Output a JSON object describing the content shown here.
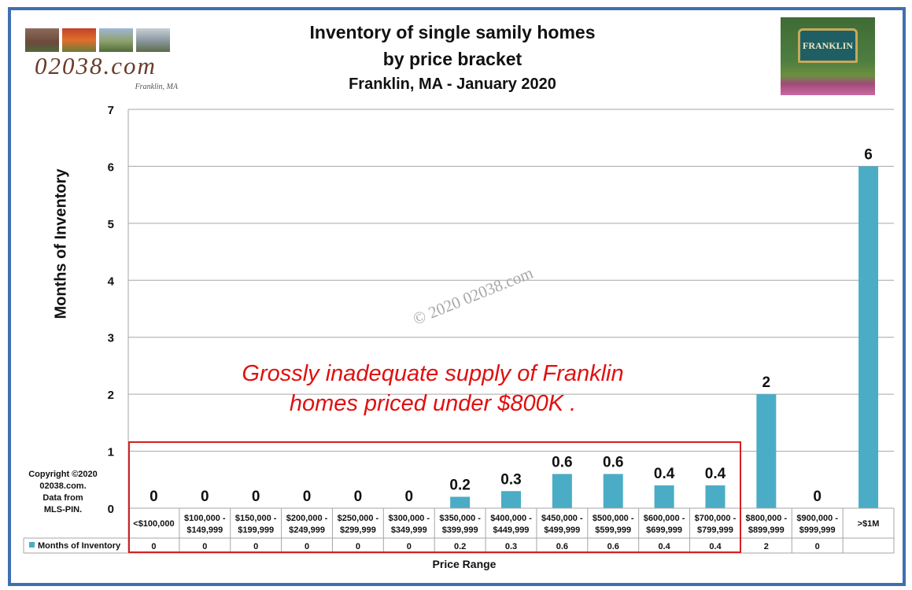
{
  "header": {
    "title_line1": "Inventory of single samily homes",
    "title_line2": "by price bracket",
    "subtitle": "Franklin, MA  - January 2020"
  },
  "logo": {
    "text": "02038.com",
    "sub": "Franklin, MA"
  },
  "sign": {
    "text": "FRANKLIN"
  },
  "watermark": "© 2020 02038.com",
  "copyright": [
    "Copyright ©2020",
    "02038.com.",
    "Data from",
    "MLS-PIN."
  ],
  "annotation": [
    "Grossly inadequate supply of Franklin",
    "homes priced under $800K ."
  ],
  "colors": {
    "bar": "#4bacc6",
    "frame": "#3f6fb0",
    "annotation": "#e01010",
    "grid": "#a6a6a6"
  },
  "chart_data": {
    "type": "bar",
    "xlabel": "Price Range",
    "ylabel": "Months of Inventory",
    "ylim": [
      0,
      7
    ],
    "yticks": [
      0,
      1,
      2,
      3,
      4,
      5,
      6,
      7
    ],
    "grid": true,
    "categories": [
      [
        "<$100,000"
      ],
      [
        "$100,000 -",
        "$149,999"
      ],
      [
        "$150,000 -",
        "$199,999"
      ],
      [
        "$200,000 -",
        "$249,999"
      ],
      [
        "$250,000 -",
        "$299,999"
      ],
      [
        "$300,000 -",
        "$349,999"
      ],
      [
        "$350,000 -",
        "$399,999"
      ],
      [
        "$400,000 -",
        "$449,999"
      ],
      [
        "$450,000 -",
        "$499,999"
      ],
      [
        "$500,000 -",
        "$599,999"
      ],
      [
        "$600,000 -",
        "$699,999"
      ],
      [
        "$700,000 -",
        "$799,999"
      ],
      [
        "$800,000 -",
        "$899,999"
      ],
      [
        "$900,000 -",
        "$999,999"
      ],
      [
        ">$1M"
      ]
    ],
    "series": [
      {
        "name": "Months of Inventory",
        "values": [
          0,
          0,
          0,
          0,
          0,
          0,
          0.2,
          0.3,
          0.6,
          0.6,
          0.4,
          0.4,
          2,
          0,
          6
        ],
        "table_values": [
          "0",
          "0",
          "0",
          "0",
          "0",
          "0",
          "0.2",
          "0.3",
          "0.6",
          "0.6",
          "0.4",
          "0.4",
          "2",
          "0",
          ""
        ]
      }
    ]
  }
}
